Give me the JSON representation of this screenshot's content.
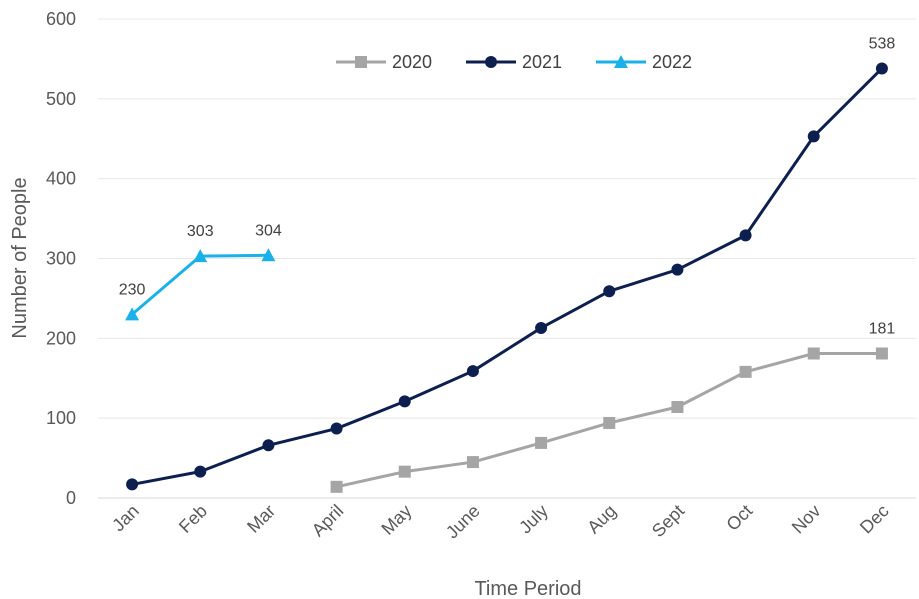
{
  "chart_data": {
    "type": "line",
    "categories": [
      "Jan",
      "Feb",
      "Mar",
      "April",
      "May",
      "June",
      "July",
      "Aug",
      "Sept",
      "Oct",
      "Nov",
      "Dec"
    ],
    "series": [
      {
        "name": "2020",
        "values": [
          null,
          null,
          null,
          14,
          33,
          45,
          69,
          94,
          114,
          158,
          181,
          181
        ],
        "color": "#a5a5a5",
        "marker": "square",
        "data_labels": {
          "11": "181"
        }
      },
      {
        "name": "2021",
        "values": [
          17,
          33,
          66,
          87,
          121,
          159,
          213,
          259,
          286,
          329,
          453,
          538
        ],
        "color": "#0d1f4f",
        "marker": "circle",
        "data_labels": {
          "11": "538"
        }
      },
      {
        "name": "2022",
        "values": [
          230,
          303,
          304,
          null,
          null,
          null,
          null,
          null,
          null,
          null,
          null,
          null
        ],
        "color": "#1ab0e8",
        "marker": "triangle",
        "data_labels": {
          "0": "230",
          "1": "303",
          "2": "304"
        }
      }
    ],
    "xlabel": "Time Period",
    "ylabel": "Number of People",
    "ylim": [
      0,
      600
    ],
    "yticks": [
      "0",
      "100",
      "200",
      "300",
      "400",
      "500",
      "600"
    ],
    "grid": true,
    "legend_position": "top-center"
  }
}
